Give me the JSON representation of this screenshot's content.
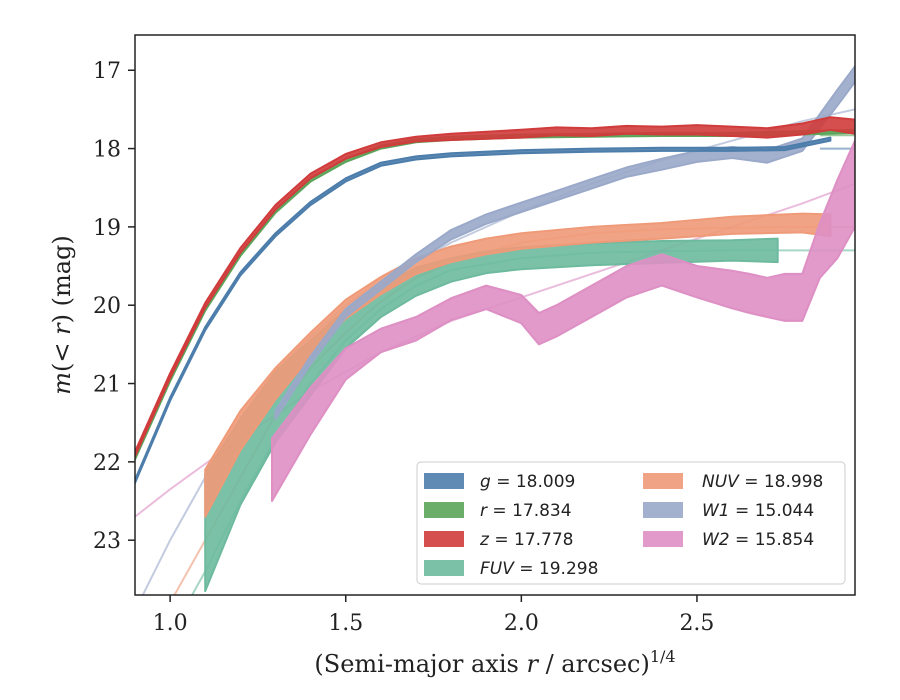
{
  "chart_data": {
    "type": "line",
    "title": "",
    "xlabel": "(Semi-major axis r / arcsec)",
    "xlabel_parts": {
      "pre": "(Semi-major axis ",
      "var": "r",
      "post": " / arcsec)",
      "sup": "1/4"
    },
    "ylabel": "m(< r) (mag)",
    "ylabel_parts": {
      "var": "m",
      "mid": "(< ",
      "var2": "r",
      "post": ") (mag)"
    },
    "xlim": [
      0.9,
      2.95
    ],
    "ylim": [
      23.7,
      16.55
    ],
    "y_inverted": true,
    "xticks": [
      1.0,
      1.5,
      2.0,
      2.5
    ],
    "xtick_labels": [
      "1.0",
      "1.5",
      "2.0",
      "2.5"
    ],
    "yticks": [
      17,
      18,
      19,
      20,
      21,
      22,
      23
    ],
    "ytick_labels": [
      "17",
      "18",
      "19",
      "20",
      "21",
      "22",
      "23"
    ],
    "legend_position": "lower-right",
    "grid": false,
    "series": [
      {
        "name": "g = 18.009",
        "band": "g",
        "value": "18.009",
        "color": "#4c7dab",
        "x": [
          0.9,
          1.0,
          1.1,
          1.2,
          1.3,
          1.4,
          1.5,
          1.6,
          1.7,
          1.8,
          2.0,
          2.2,
          2.4,
          2.6,
          2.75,
          2.88
        ],
        "y": [
          22.25,
          21.2,
          20.3,
          19.6,
          19.1,
          18.7,
          18.4,
          18.2,
          18.12,
          18.08,
          18.04,
          18.02,
          18.01,
          18.01,
          18.0,
          17.88
        ],
        "yerr": [
          0.02,
          0.02,
          0.02,
          0.02,
          0.02,
          0.02,
          0.02,
          0.02,
          0.02,
          0.02,
          0.02,
          0.02,
          0.02,
          0.02,
          0.02,
          0.02
        ],
        "model_x": [
          2.85,
          2.95
        ],
        "model_y": [
          18.0,
          18.0
        ]
      },
      {
        "name": "r = 17.834",
        "band": "r",
        "value": "17.834",
        "color": "#5aa55a",
        "x": [
          0.9,
          1.0,
          1.1,
          1.2,
          1.3,
          1.4,
          1.5,
          1.6,
          1.7,
          1.8,
          2.0,
          2.2,
          2.4,
          2.6,
          2.8,
          2.95
        ],
        "y": [
          21.95,
          20.95,
          20.05,
          19.35,
          18.8,
          18.4,
          18.15,
          17.98,
          17.9,
          17.87,
          17.84,
          17.83,
          17.82,
          17.82,
          17.8,
          17.78
        ],
        "yerr": [
          0.02,
          0.02,
          0.02,
          0.02,
          0.02,
          0.02,
          0.02,
          0.02,
          0.02,
          0.02,
          0.02,
          0.02,
          0.02,
          0.02,
          0.02,
          0.02
        ],
        "model_x": [
          2.85,
          2.95
        ],
        "model_y": [
          17.83,
          17.83
        ]
      },
      {
        "name": "z = 17.778",
        "band": "z",
        "value": "17.778",
        "color": "#d03c3c",
        "x": [
          0.9,
          1.0,
          1.1,
          1.2,
          1.3,
          1.4,
          1.5,
          1.6,
          1.7,
          1.8,
          2.0,
          2.1,
          2.2,
          2.3,
          2.4,
          2.5,
          2.6,
          2.7,
          2.8,
          2.88,
          2.95
        ],
        "y": [
          21.9,
          20.9,
          20.0,
          19.3,
          18.75,
          18.35,
          18.1,
          17.95,
          17.88,
          17.85,
          17.81,
          17.78,
          17.79,
          17.76,
          17.77,
          17.76,
          17.78,
          17.8,
          17.75,
          17.68,
          17.72
        ],
        "yerr": [
          0.03,
          0.03,
          0.03,
          0.03,
          0.03,
          0.03,
          0.03,
          0.03,
          0.03,
          0.04,
          0.05,
          0.05,
          0.05,
          0.05,
          0.05,
          0.06,
          0.06,
          0.06,
          0.07,
          0.08,
          0.09
        ],
        "model_x": [
          2.85,
          2.95
        ],
        "model_y": [
          17.78,
          17.78
        ]
      },
      {
        "name": "FUV = 19.298",
        "band": "FUV",
        "value": "19.298",
        "color": "#6dba9f",
        "x": [
          1.1,
          1.2,
          1.3,
          1.4,
          1.5,
          1.6,
          1.7,
          1.8,
          1.9,
          2.0,
          2.2,
          2.4,
          2.6,
          2.73
        ],
        "y": [
          22.9,
          22.0,
          21.3,
          20.8,
          20.3,
          19.95,
          19.7,
          19.55,
          19.45,
          19.4,
          19.35,
          19.32,
          19.3,
          19.3
        ],
        "yerr": [
          0.75,
          0.55,
          0.45,
          0.35,
          0.25,
          0.2,
          0.18,
          0.15,
          0.14,
          0.14,
          0.14,
          0.14,
          0.13,
          0.15
        ],
        "model_x": [
          0.9,
          1.0,
          1.1,
          1.2,
          1.3,
          1.4,
          1.5,
          1.6,
          1.7,
          1.8,
          2.0,
          2.2,
          2.4,
          2.6,
          2.8,
          2.95
        ],
        "model_y": [
          25.0,
          24.2,
          23.4,
          22.5,
          21.7,
          21.0,
          20.45,
          20.05,
          19.75,
          19.55,
          19.4,
          19.33,
          19.31,
          19.3,
          19.3,
          19.3
        ]
      },
      {
        "name": "NUV = 18.998",
        "band": "NUV",
        "value": "18.998",
        "color": "#ef9a78",
        "x": [
          1.1,
          1.2,
          1.3,
          1.4,
          1.5,
          1.6,
          1.7,
          1.8,
          1.9,
          2.0,
          2.2,
          2.4,
          2.6,
          2.8,
          2.88
        ],
        "y": [
          22.4,
          21.6,
          21.0,
          20.5,
          20.05,
          19.75,
          19.5,
          19.35,
          19.25,
          19.18,
          19.1,
          19.05,
          18.98,
          18.95,
          18.98
        ],
        "yerr": [
          0.3,
          0.25,
          0.2,
          0.15,
          0.12,
          0.11,
          0.1,
          0.1,
          0.1,
          0.1,
          0.1,
          0.1,
          0.11,
          0.12,
          0.14
        ],
        "model_x": [
          0.9,
          1.0,
          1.1,
          1.2,
          1.3,
          1.4,
          1.5,
          1.6,
          1.7,
          1.8,
          2.0,
          2.2,
          2.4,
          2.6,
          2.8,
          2.95
        ],
        "model_y": [
          24.6,
          23.8,
          23.0,
          22.2,
          21.4,
          20.8,
          20.35,
          19.95,
          19.65,
          19.45,
          19.2,
          19.08,
          19.03,
          19.01,
          19.0,
          19.0
        ]
      },
      {
        "name": "W1 = 15.044",
        "band": "W1",
        "value": "15.044",
        "color": "#9aa9c9",
        "x": [
          1.3,
          1.4,
          1.5,
          1.6,
          1.7,
          1.8,
          1.9,
          2.0,
          2.1,
          2.2,
          2.3,
          2.4,
          2.5,
          2.6,
          2.7,
          2.8,
          2.85,
          2.9,
          2.95
        ],
        "y": [
          21.4,
          20.7,
          20.1,
          19.75,
          19.4,
          19.1,
          18.9,
          18.75,
          18.6,
          18.45,
          18.3,
          18.2,
          18.1,
          18.05,
          18.1,
          17.95,
          17.65,
          17.35,
          17.05
        ],
        "yerr": [
          0.05,
          0.05,
          0.05,
          0.05,
          0.05,
          0.06,
          0.06,
          0.06,
          0.06,
          0.06,
          0.06,
          0.07,
          0.07,
          0.07,
          0.08,
          0.08,
          0.09,
          0.1,
          0.1
        ],
        "model_x": [
          0.9,
          1.0,
          1.1,
          1.2,
          1.3,
          1.4,
          1.5,
          1.6,
          1.7,
          1.8,
          2.0,
          2.2,
          2.4,
          2.6,
          2.8,
          2.95
        ],
        "model_y": [
          23.9,
          23.0,
          22.2,
          21.45,
          20.85,
          20.4,
          20.0,
          19.7,
          19.45,
          19.2,
          18.8,
          18.45,
          18.15,
          17.9,
          17.65,
          17.5
        ]
      },
      {
        "name": "W2 = 15.854",
        "band": "W2",
        "value": "15.854",
        "color": "#de8fc4",
        "x": [
          1.29,
          1.4,
          1.5,
          1.6,
          1.7,
          1.8,
          1.9,
          2.0,
          2.05,
          2.1,
          2.2,
          2.3,
          2.4,
          2.5,
          2.6,
          2.65,
          2.7,
          2.75,
          2.8,
          2.85,
          2.9,
          2.95
        ],
        "y": [
          22.1,
          21.35,
          20.75,
          20.45,
          20.3,
          20.05,
          19.9,
          20.05,
          20.3,
          20.2,
          19.95,
          19.7,
          19.55,
          19.7,
          19.8,
          19.85,
          19.9,
          19.9,
          19.9,
          19.3,
          18.9,
          18.45
        ],
        "yerr": [
          0.4,
          0.3,
          0.2,
          0.15,
          0.15,
          0.14,
          0.15,
          0.18,
          0.2,
          0.2,
          0.2,
          0.2,
          0.2,
          0.2,
          0.24,
          0.25,
          0.25,
          0.3,
          0.3,
          0.35,
          0.5,
          0.55
        ],
        "model_x": [
          0.9,
          1.0,
          1.2,
          1.4,
          1.6,
          1.8,
          2.0,
          2.2,
          2.4,
          2.6,
          2.8,
          2.95
        ],
        "model_y": [
          22.7,
          22.35,
          21.7,
          21.1,
          20.6,
          20.2,
          19.9,
          19.6,
          19.3,
          19.0,
          18.7,
          18.45
        ]
      }
    ]
  }
}
